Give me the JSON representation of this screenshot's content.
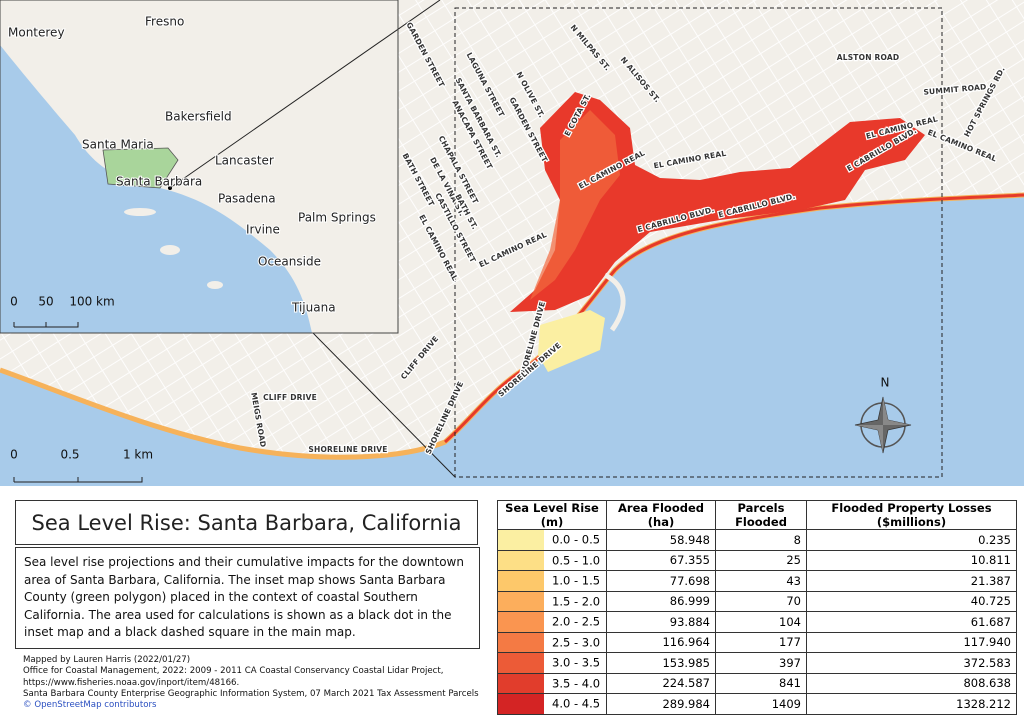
{
  "inset": {
    "places": [
      "Monterey",
      "Fresno",
      "Bakersfield",
      "Santa Maria",
      "Santa Barbara",
      "Lancaster",
      "Pasadena",
      "Irvine",
      "Palm Springs",
      "Oceanside",
      "Tijuana"
    ],
    "scale": [
      "0",
      "50",
      "100 km"
    ]
  },
  "main": {
    "streets": [
      "ALSTON ROAD",
      "SUMMIT ROAD",
      "HOT SPRINGS RD.",
      "N MILPAS ST.",
      "N ALISOS ST.",
      "GARDEN STREET",
      "LAGUNA STREET",
      "N OLIVE ST.",
      "SANTA BARBARA ST.",
      "GARDEN STREET",
      "E COTA ST.",
      "ANACAPA STREET",
      "CHAPALA STREET",
      "DE LA VINA ST.",
      "BATH STREET",
      "BATH ST.",
      "CASTILLO STREET",
      "EL CAMINO REAL",
      "EL CAMINO REAL",
      "EL CAMINO REAL",
      "EL CAMINO REAL",
      "E CABRILLO BLVD.",
      "E CABRILLO BLVD.",
      "EL CAMINO REAL",
      "E CABRILLO BLVD.",
      "EL CAMINO REAL",
      "SHORELINE DRIVE",
      "SHORELINE DRIVE",
      "CLIFF DRIVE",
      "SHORELINE DRIVE",
      "CLIFF DRIVE",
      "MEIGS ROAD",
      "SHORELINE DRIVE"
    ],
    "scale": [
      "0",
      "0.5",
      "1 km"
    ],
    "north": "N"
  },
  "title": "Sea Level Rise: Santa Barbara, California",
  "description": "Sea level rise projections and their cumulative impacts for the downtown area of Santa Barbara, California. The inset map shows Santa Barbara County (green polygon) placed in the context of coastal Southern California. The area used for calculations is shown as a black dot in the inset map and a black dashed square in the main map.",
  "credits": [
    "Mapped by Lauren Harris (2022/01/27)",
    "Office for Coastal Management, 2022: 2009 - 2011 CA Coastal Conservancy Coastal Lidar Project,",
    "https://www.fisheries.noaa.gov/inport/item/48166.",
    "Santa Barbara County Enterprise Geographic Information System, 07 March 2021 Tax Assessment Parcels",
    "© OpenStreetMap contributors"
  ],
  "table": {
    "header": [
      "Sea Level Rise (m)",
      "Area Flooded (ha)",
      "Parcels Flooded",
      "Flooded Property Losses ($millions)"
    ],
    "row_colors": [
      "#fbefa2",
      "#fddf86",
      "#fdc86a",
      "#fcae5c",
      "#fa9550",
      "#f47a44",
      "#ec5b37",
      "#e13d2c",
      "#d42424"
    ],
    "rows": [
      [
        "0.0 - 0.5",
        "58.948",
        "8",
        "0.235"
      ],
      [
        "0.5 - 1.0",
        "67.355",
        "25",
        "10.811"
      ],
      [
        "1.0 - 1.5",
        "77.698",
        "43",
        "21.387"
      ],
      [
        "1.5 - 2.0",
        "86.999",
        "70",
        "40.725"
      ],
      [
        "2.0 - 2.5",
        "93.884",
        "104",
        "61.687"
      ],
      [
        "2.5 - 3.0",
        "116.964",
        "177",
        "117.940"
      ],
      [
        "3.0 - 3.5",
        "153.985",
        "397",
        "372.583"
      ],
      [
        "3.5 - 4.0",
        "224.587",
        "841",
        "808.638"
      ],
      [
        "4.0 - 4.5",
        "289.984",
        "1409",
        "1328.212"
      ]
    ]
  }
}
